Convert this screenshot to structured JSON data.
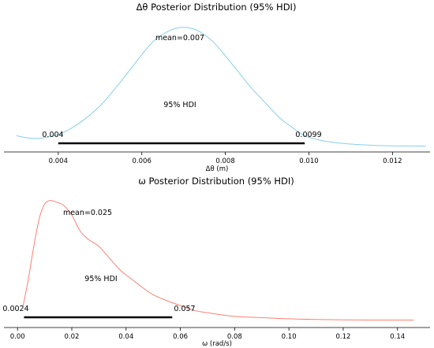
{
  "chart_data": [
    {
      "type": "area",
      "title": "Δθ Posterior Distribution (95% HDI)",
      "xlabel": "Δθ (m)",
      "ylabel": "",
      "xlim": [
        0.0027,
        0.0129
      ],
      "ylim": [
        0,
        1.07
      ],
      "xticks": [
        0.004,
        0.006,
        0.008,
        0.01,
        0.012
      ],
      "xtick_labels": [
        "0.004",
        "0.006",
        "0.008",
        "0.010",
        "0.012"
      ],
      "color": "#87ceeb",
      "curve": {
        "x": [
          0.003,
          0.0033,
          0.0036,
          0.004,
          0.0043,
          0.0046,
          0.005,
          0.0053,
          0.0056,
          0.006,
          0.0063,
          0.0066,
          0.0068,
          0.007,
          0.0072,
          0.0074,
          0.0077,
          0.008,
          0.0083,
          0.0086,
          0.009,
          0.0093,
          0.0096,
          0.0099,
          0.0103,
          0.0107,
          0.011,
          0.0115,
          0.012,
          0.0125,
          0.0128
        ],
        "y": [
          0.09,
          0.07,
          0.07,
          0.1,
          0.15,
          0.22,
          0.34,
          0.46,
          0.59,
          0.77,
          0.89,
          0.96,
          0.99,
          1.0,
          0.99,
          0.96,
          0.88,
          0.76,
          0.63,
          0.5,
          0.35,
          0.24,
          0.16,
          0.09,
          0.05,
          0.03,
          0.02,
          0.01,
          0.005,
          0.003,
          0.003
        ]
      },
      "mean_label": "mean=0.007",
      "hdi_label": "95% HDI",
      "hdi": [
        0.004,
        0.0099
      ],
      "hdi_low_label": "0.004",
      "hdi_high_label": "0.0099"
    },
    {
      "type": "area",
      "title": "ω Posterior Distribution (95% HDI)",
      "xlabel": "ω (rad/s)",
      "ylabel": "",
      "xlim": [
        -0.005,
        0.152
      ],
      "ylim": [
        0,
        1.07
      ],
      "xticks": [
        0,
        0.02,
        0.04,
        0.06,
        0.08,
        0.1,
        0.12,
        0.14
      ],
      "xtick_labels": [
        "0.00",
        "0.02",
        "0.04",
        "0.06",
        "0.08",
        "0.10",
        "0.12",
        "0.14"
      ],
      "color": "#fa8072",
      "curve": {
        "x": [
          0.002,
          0.004,
          0.006,
          0.008,
          0.01,
          0.012,
          0.014,
          0.017,
          0.02,
          0.023,
          0.026,
          0.03,
          0.034,
          0.038,
          0.042,
          0.046,
          0.05,
          0.055,
          0.06,
          0.065,
          0.07,
          0.08,
          0.09,
          0.1,
          0.11,
          0.12,
          0.13,
          0.14,
          0.146
        ],
        "y": [
          0.12,
          0.35,
          0.62,
          0.85,
          0.97,
          1.0,
          0.99,
          0.96,
          0.88,
          0.75,
          0.68,
          0.62,
          0.52,
          0.42,
          0.35,
          0.28,
          0.22,
          0.17,
          0.13,
          0.09,
          0.07,
          0.04,
          0.03,
          0.02,
          0.015,
          0.012,
          0.01,
          0.01,
          0.01
        ]
      },
      "mean_label": "mean=0.025",
      "hdi_label": "95% HDI",
      "hdi": [
        0.0024,
        0.057
      ],
      "hdi_low_label": "0.0024",
      "hdi_high_label": "0.057"
    }
  ]
}
